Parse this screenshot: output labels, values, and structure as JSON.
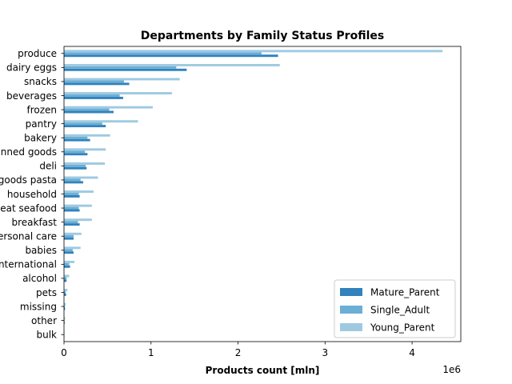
{
  "chart_data": {
    "type": "bar",
    "orientation": "horizontal",
    "title": "Departments by Family Status Profiles",
    "xlabel": "Products count [mln]",
    "ylabel": "",
    "offset_text": "1e6",
    "xlim": [
      0,
      4560000
    ],
    "xticks": [
      0,
      1000000,
      2000000,
      3000000,
      4000000
    ],
    "xtick_labels": [
      "0",
      "1",
      "2",
      "3",
      "4"
    ],
    "grid": false,
    "legend_position": "lower-right",
    "categories": [
      "produce",
      "dairy eggs",
      "snacks",
      "beverages",
      "frozen",
      "pantry",
      "bakery",
      "canned goods",
      "deli",
      "dry goods pasta",
      "household",
      "meat seafood",
      "breakfast",
      "personal care",
      "babies",
      "international",
      "alcohol",
      "pets",
      "missing",
      "other",
      "bulk"
    ],
    "series": [
      {
        "name": "Mature_Parent",
        "color": "#3182bd",
        "values": [
          2460000,
          1410000,
          750000,
          680000,
          570000,
          480000,
          300000,
          270000,
          260000,
          220000,
          180000,
          180000,
          180000,
          110000,
          110000,
          70000,
          30000,
          25000,
          12000,
          8000,
          4000
        ]
      },
      {
        "name": "Single_Adult",
        "color": "#6baed6",
        "values": [
          2270000,
          1290000,
          690000,
          640000,
          520000,
          440000,
          270000,
          240000,
          250000,
          190000,
          170000,
          170000,
          160000,
          110000,
          100000,
          60000,
          30000,
          20000,
          10000,
          7000,
          3000
        ]
      },
      {
        "name": "Young_Parent",
        "color": "#9ecae1",
        "values": [
          4350000,
          2480000,
          1330000,
          1240000,
          1020000,
          850000,
          530000,
          480000,
          470000,
          390000,
          340000,
          320000,
          320000,
          200000,
          190000,
          120000,
          60000,
          40000,
          20000,
          13000,
          6000
        ]
      }
    ]
  }
}
